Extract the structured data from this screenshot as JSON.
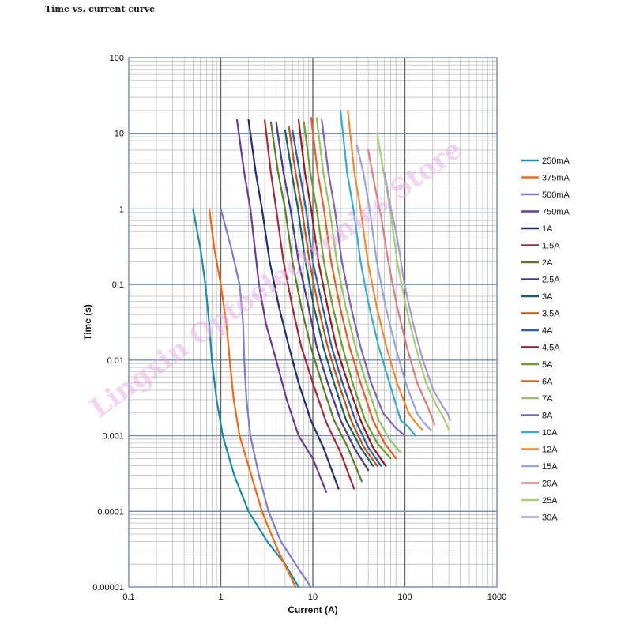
{
  "page_title": "Time vs. current curve",
  "watermark": "Lingxin Optoelectronics Store",
  "chart_data": {
    "type": "line",
    "title": "Time vs. current curve",
    "xlabel": "Current (A)",
    "ylabel": "Time (s)",
    "xscale": "log",
    "yscale": "log",
    "xlim": [
      0.1,
      1000
    ],
    "ylim": [
      1e-05,
      100
    ],
    "x_ticks": [
      "0.1",
      "1",
      "10",
      "100",
      "1000"
    ],
    "y_ticks": [
      "100",
      "10",
      "1",
      "0.1",
      "0.01",
      "0.001",
      "0.0001",
      "0.00001"
    ],
    "grid": true,
    "legend_position": "right",
    "series": [
      {
        "name": "250mA",
        "color": "#1b8aa6",
        "points": [
          [
            0.5,
            1
          ],
          [
            0.6,
            0.3
          ],
          [
            0.68,
            0.1
          ],
          [
            0.75,
            0.03
          ],
          [
            0.8,
            0.01
          ],
          [
            0.9,
            0.003
          ],
          [
            1.05,
            0.001
          ],
          [
            1.4,
            0.0003
          ],
          [
            2,
            0.0001
          ],
          [
            3.2,
            4e-05
          ],
          [
            5,
            2e-05
          ],
          [
            7,
            1e-05
          ]
        ]
      },
      {
        "name": "375mA",
        "color": "#ee6a1a",
        "points": [
          [
            0.75,
            1
          ],
          [
            0.85,
            0.3
          ],
          [
            1,
            0.1
          ],
          [
            1.15,
            0.03
          ],
          [
            1.25,
            0.01
          ],
          [
            1.38,
            0.003
          ],
          [
            1.6,
            0.001
          ],
          [
            2,
            0.0004
          ],
          [
            2.8,
            0.0001
          ],
          [
            4.2,
            3e-05
          ],
          [
            6.5,
            1e-05
          ]
        ]
      },
      {
        "name": "500mA",
        "color": "#7e7fc8",
        "points": [
          [
            1,
            1
          ],
          [
            1.3,
            0.3
          ],
          [
            1.6,
            0.1
          ],
          [
            1.75,
            0.03
          ],
          [
            1.8,
            0.01
          ],
          [
            1.9,
            0.003
          ],
          [
            2.1,
            0.001
          ],
          [
            2.6,
            0.0003
          ],
          [
            3.3,
            0.0001
          ],
          [
            4.5,
            4e-05
          ],
          [
            6.5,
            2e-05
          ],
          [
            9.5,
            1e-05
          ]
        ]
      },
      {
        "name": "750mA",
        "color": "#6a3b93",
        "points": [
          [
            1.5,
            15
          ],
          [
            1.8,
            3
          ],
          [
            2.1,
            1
          ],
          [
            2.6,
            0.1
          ],
          [
            3.1,
            0.03
          ],
          [
            4,
            0.01
          ],
          [
            5.2,
            0.003
          ],
          [
            7,
            0.001
          ],
          [
            10,
            0.0005
          ],
          [
            14,
            0.00018
          ]
        ]
      },
      {
        "name": "1A",
        "color": "#1f2f6e",
        "points": [
          [
            2,
            15
          ],
          [
            2.4,
            3
          ],
          [
            2.8,
            1
          ],
          [
            3.4,
            0.2
          ],
          [
            4.3,
            0.05
          ],
          [
            5.5,
            0.015
          ],
          [
            7,
            0.005
          ],
          [
            9.5,
            0.0016
          ],
          [
            13,
            0.0007
          ],
          [
            19,
            0.0002
          ]
        ]
      },
      {
        "name": "1.5A",
        "color": "#a02b3a",
        "points": [
          [
            3,
            15
          ],
          [
            3.5,
            3
          ],
          [
            4,
            1
          ],
          [
            4.8,
            0.2
          ],
          [
            6,
            0.05
          ],
          [
            7.5,
            0.015
          ],
          [
            10,
            0.005
          ],
          [
            14,
            0.0015
          ],
          [
            20,
            0.0006
          ],
          [
            28,
            0.0002
          ]
        ]
      },
      {
        "name": "2A",
        "color": "#5c7d2a",
        "points": [
          [
            3.5,
            14
          ],
          [
            4.2,
            3
          ],
          [
            5,
            1
          ],
          [
            6,
            0.2
          ],
          [
            7.5,
            0.05
          ],
          [
            9.5,
            0.015
          ],
          [
            12.5,
            0.005
          ],
          [
            17,
            0.0016
          ],
          [
            24,
            0.0007
          ],
          [
            34,
            0.00025
          ]
        ]
      },
      {
        "name": "2.5A",
        "color": "#4b3a8a",
        "points": [
          [
            4,
            14
          ],
          [
            4.8,
            3
          ],
          [
            5.7,
            1
          ],
          [
            7,
            0.2
          ],
          [
            9,
            0.05
          ],
          [
            11,
            0.015
          ],
          [
            14.5,
            0.005
          ],
          [
            20,
            0.0016
          ],
          [
            28,
            0.0007
          ],
          [
            40,
            0.00035
          ]
        ]
      },
      {
        "name": "3A",
        "color": "#1c5f6c",
        "points": [
          [
            5,
            11
          ],
          [
            5.9,
            3
          ],
          [
            6.9,
            1
          ],
          [
            8.3,
            0.2
          ],
          [
            10.3,
            0.05
          ],
          [
            13,
            0.015
          ],
          [
            17,
            0.005
          ],
          [
            23,
            0.0016
          ],
          [
            33,
            0.0007
          ],
          [
            45,
            0.0004
          ]
        ]
      },
      {
        "name": "3.5A",
        "color": "#c0571a",
        "points": [
          [
            5.5,
            12
          ],
          [
            6.5,
            3
          ],
          [
            7.6,
            1
          ],
          [
            9.2,
            0.2
          ],
          [
            11.5,
            0.05
          ],
          [
            14.5,
            0.015
          ],
          [
            19,
            0.005
          ],
          [
            26,
            0.0016
          ],
          [
            36,
            0.0007
          ],
          [
            50,
            0.0004
          ]
        ]
      },
      {
        "name": "4A",
        "color": "#2d5ea8",
        "points": [
          [
            6,
            11
          ],
          [
            7.2,
            3
          ],
          [
            8.4,
            1
          ],
          [
            10,
            0.2
          ],
          [
            12.8,
            0.05
          ],
          [
            16,
            0.015
          ],
          [
            21,
            0.005
          ],
          [
            29,
            0.0016
          ],
          [
            40,
            0.0007
          ],
          [
            55,
            0.0004
          ]
        ]
      },
      {
        "name": "4.5A",
        "color": "#8c1f2a",
        "points": [
          [
            7,
            15
          ],
          [
            8.2,
            3
          ],
          [
            9.6,
            1
          ],
          [
            11.5,
            0.2
          ],
          [
            14.5,
            0.05
          ],
          [
            18,
            0.015
          ],
          [
            24,
            0.005
          ],
          [
            33,
            0.0016
          ],
          [
            45,
            0.0007
          ],
          [
            62,
            0.0004
          ]
        ]
      },
      {
        "name": "5A",
        "color": "#6e9e2e",
        "points": [
          [
            8,
            14
          ],
          [
            9.4,
            3
          ],
          [
            11,
            1
          ],
          [
            13.2,
            0.2
          ],
          [
            16.5,
            0.05
          ],
          [
            21,
            0.015
          ],
          [
            27,
            0.005
          ],
          [
            37,
            0.0016
          ],
          [
            50,
            0.0008
          ],
          [
            70,
            0.0005
          ]
        ]
      },
      {
        "name": "6A",
        "color": "#e0612a",
        "points": [
          [
            9.6,
            16
          ],
          [
            11.3,
            3
          ],
          [
            13.2,
            1
          ],
          [
            15.8,
            0.2
          ],
          [
            19.8,
            0.05
          ],
          [
            25,
            0.015
          ],
          [
            33,
            0.005
          ],
          [
            45,
            0.0016
          ],
          [
            60,
            0.0008
          ],
          [
            80,
            0.0005
          ]
        ]
      },
      {
        "name": "7A",
        "color": "#95c465",
        "points": [
          [
            11,
            16
          ],
          [
            13,
            3
          ],
          [
            15.2,
            1
          ],
          [
            18.2,
            0.2
          ],
          [
            22.8,
            0.05
          ],
          [
            29,
            0.015
          ],
          [
            38,
            0.005
          ],
          [
            52,
            0.0016
          ],
          [
            68,
            0.0009
          ],
          [
            90,
            0.0006
          ]
        ]
      },
      {
        "name": "8A",
        "color": "#7d66b3",
        "points": [
          [
            12.5,
            15
          ],
          [
            14.8,
            3
          ],
          [
            17.3,
            1
          ],
          [
            20.7,
            0.2
          ],
          [
            26,
            0.05
          ],
          [
            33,
            0.015
          ],
          [
            43,
            0.005
          ],
          [
            58,
            0.002
          ],
          [
            78,
            0.0013
          ],
          [
            100,
            0.001
          ]
        ]
      },
      {
        "name": "10A",
        "color": "#3cabc8",
        "points": [
          [
            20,
            20
          ],
          [
            23.6,
            3
          ],
          [
            27.6,
            1
          ],
          [
            33,
            0.2
          ],
          [
            41,
            0.05
          ],
          [
            52,
            0.015
          ],
          [
            68,
            0.005
          ],
          [
            90,
            0.0016
          ],
          [
            110,
            0.0013
          ],
          [
            130,
            0.001
          ]
        ]
      },
      {
        "name": "12A",
        "color": "#f08a3a",
        "points": [
          [
            24,
            20
          ],
          [
            28.3,
            3
          ],
          [
            33,
            1
          ],
          [
            39.6,
            0.2
          ],
          [
            49.5,
            0.05
          ],
          [
            63,
            0.015
          ],
          [
            82,
            0.005
          ],
          [
            110,
            0.002
          ],
          [
            130,
            0.0015
          ],
          [
            155,
            0.0012
          ]
        ]
      },
      {
        "name": "15A",
        "color": "#9aa4d8",
        "points": [
          [
            30,
            7
          ],
          [
            35.4,
            3
          ],
          [
            41.3,
            1
          ],
          [
            49.5,
            0.2
          ],
          [
            62,
            0.05
          ],
          [
            79,
            0.015
          ],
          [
            102,
            0.005
          ],
          [
            135,
            0.002
          ],
          [
            160,
            0.0015
          ],
          [
            190,
            0.0012
          ]
        ]
      },
      {
        "name": "20A",
        "color": "#d98080",
        "points": [
          [
            40,
            6
          ],
          [
            47.2,
            2
          ],
          [
            55,
            0.8
          ],
          [
            66,
            0.2
          ],
          [
            82.5,
            0.05
          ],
          [
            105,
            0.015
          ],
          [
            136,
            0.005
          ],
          [
            175,
            0.0025
          ],
          [
            195,
            0.0018
          ],
          [
            210,
            0.0014
          ]
        ]
      },
      {
        "name": "25A",
        "color": "#a8d07a",
        "points": [
          [
            50,
            10
          ],
          [
            59,
            3
          ],
          [
            69,
            1
          ],
          [
            82.5,
            0.2
          ],
          [
            103,
            0.05
          ],
          [
            131,
            0.015
          ],
          [
            170,
            0.005
          ],
          [
            220,
            0.0025
          ],
          [
            260,
            0.0018
          ],
          [
            300,
            0.0012
          ]
        ]
      },
      {
        "name": "30A",
        "color": "#a99ad0",
        "points": [
          [
            60,
            3
          ],
          [
            70.8,
            1
          ],
          [
            82.8,
            0.4
          ],
          [
            99,
            0.1
          ],
          [
            123,
            0.03
          ],
          [
            157,
            0.01
          ],
          [
            204,
            0.004
          ],
          [
            255,
            0.0025
          ],
          [
            290,
            0.002
          ],
          [
            310,
            0.0016
          ]
        ]
      }
    ]
  }
}
